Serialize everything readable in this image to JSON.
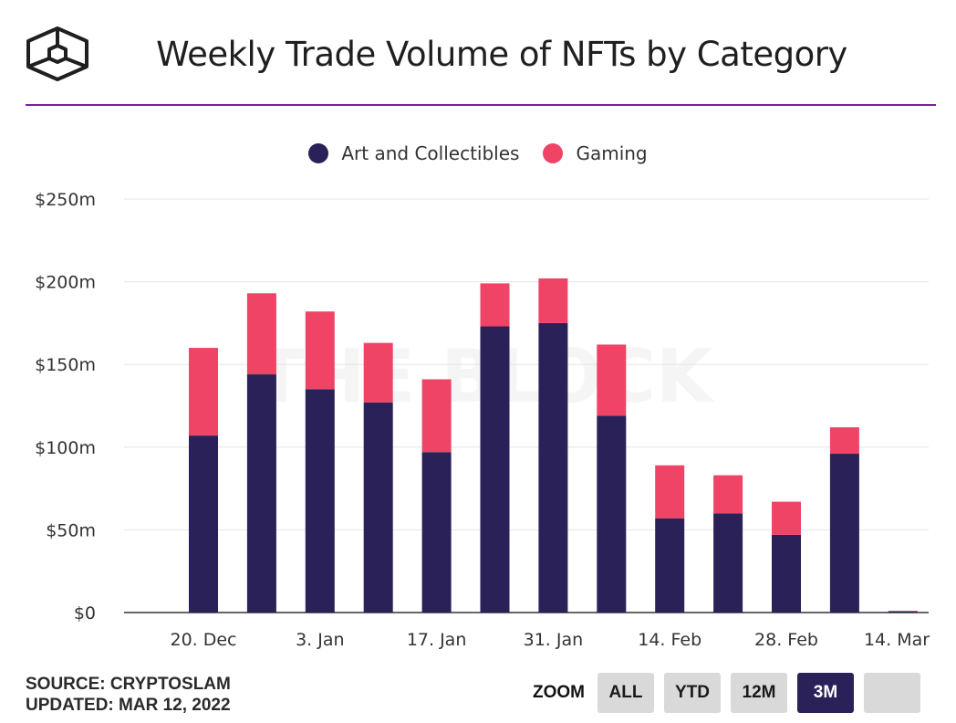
{
  "header": {
    "title": "Weekly Trade Volume of NFTs by Category",
    "logo_icon": "the-block-cube-logo"
  },
  "legend": [
    {
      "label": "Art and Collectibles",
      "color": "#2a2158"
    },
    {
      "label": "Gaming",
      "color": "#ef4466"
    }
  ],
  "watermark": "THE BLOCK",
  "chart_data": {
    "type": "bar",
    "stacked": true,
    "title": "Weekly Trade Volume of NFTs by Category",
    "xlabel": "",
    "ylabel": "",
    "ylim": [
      0,
      250
    ],
    "y_unit": "$m",
    "y_ticks": [
      0,
      50,
      100,
      150,
      200,
      250
    ],
    "y_tick_labels": [
      "$0",
      "$50m",
      "$100m",
      "$150m",
      "$200m",
      "$250m"
    ],
    "x_tick_labels": [
      "20. Dec",
      "3. Jan",
      "17. Jan",
      "31. Jan",
      "14. Feb",
      "28. Feb",
      "14. Mar"
    ],
    "categories": [
      "20. Dec",
      "27. Dec",
      "3. Jan",
      "10. Jan",
      "17. Jan",
      "24. Jan",
      "31. Jan",
      "7. Feb",
      "14. Feb",
      "21. Feb",
      "28. Feb",
      "7. Mar",
      "14. Mar"
    ],
    "series": [
      {
        "name": "Art and Collectibles",
        "color": "#2a2158",
        "values": [
          107,
          144,
          135,
          127,
          97,
          173,
          175,
          119,
          57,
          60,
          47,
          96,
          0.8
        ]
      },
      {
        "name": "Gaming",
        "color": "#ef4466",
        "values": [
          53,
          49,
          47,
          36,
          44,
          26,
          27,
          43,
          32,
          23,
          20,
          16,
          0.2
        ]
      }
    ],
    "grid": true,
    "legend_position": "top-center"
  },
  "footer": {
    "source": "SOURCE: CRYPTOSLAM",
    "updated": "UPDATED: MAR 12, 2022"
  },
  "zoom": {
    "label": "ZOOM",
    "buttons": [
      {
        "label": "ALL",
        "active": false
      },
      {
        "label": "YTD",
        "active": false
      },
      {
        "label": "12M",
        "active": false
      },
      {
        "label": "3M",
        "active": true
      },
      {
        "label": "",
        "active": false
      }
    ]
  }
}
